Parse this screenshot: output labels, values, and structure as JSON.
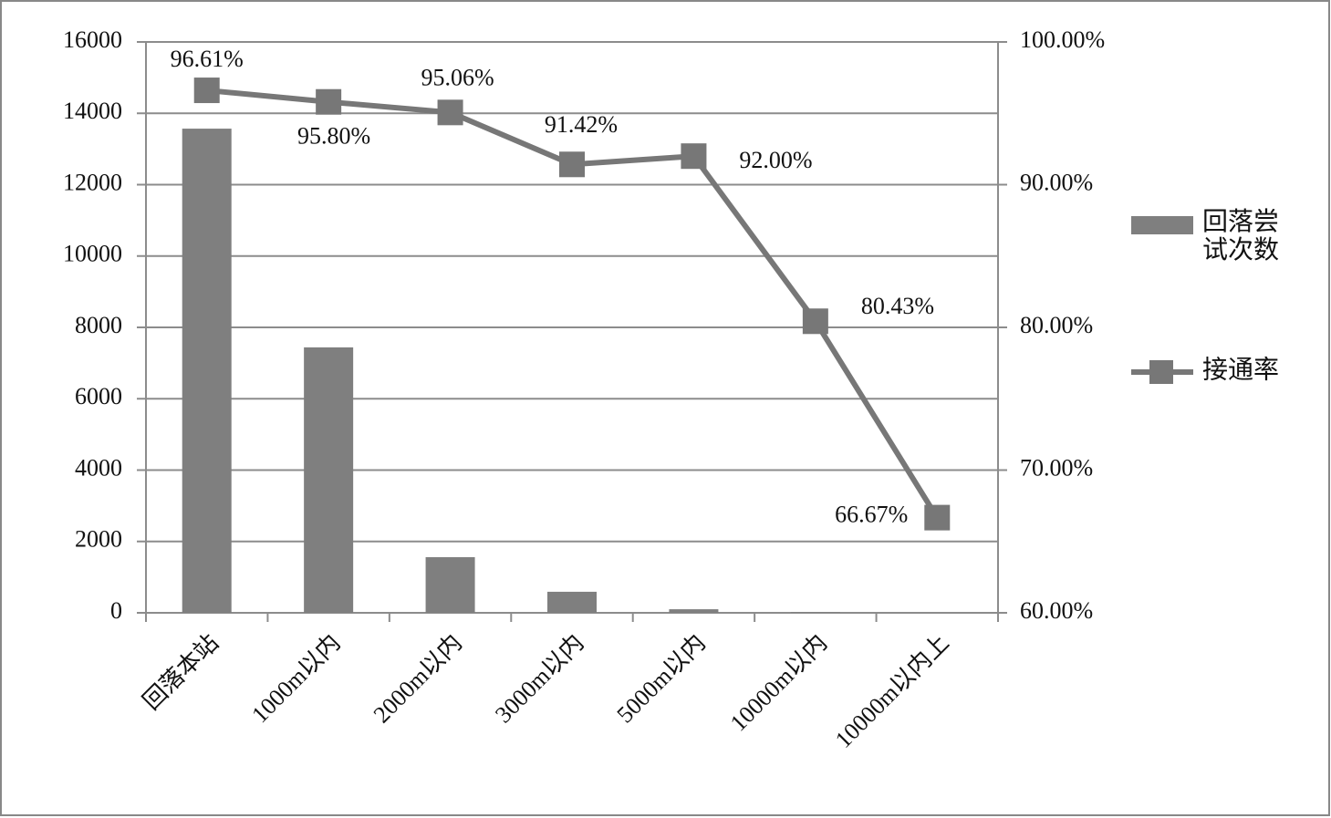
{
  "chart_data": {
    "type": "bar-line",
    "categories": [
      "回落本站",
      "1000m以内",
      "2000m以内",
      "3000m以内",
      "5000m以内",
      "10000m以内",
      "10000m以内上"
    ],
    "series": [
      {
        "name": "回落尝试次数",
        "type": "bar",
        "color": "#7f7f7f",
        "values": [
          13570,
          7440,
          1560,
          590,
          100,
          20,
          0
        ]
      },
      {
        "name": "接通率",
        "type": "line",
        "axis": "y2",
        "color": "#777777",
        "values": [
          96.61,
          95.8,
          95.06,
          91.42,
          92.0,
          80.43,
          66.67
        ],
        "value_labels": [
          "96.61%",
          "95.80%",
          "95.06%",
          "91.42%",
          "92.00%",
          "80.43%",
          "66.67%"
        ]
      }
    ],
    "ylim": [
      0,
      16000
    ],
    "yticks": [
      0,
      2000,
      4000,
      6000,
      8000,
      10000,
      12000,
      14000,
      16000
    ],
    "y2lim": [
      60,
      100
    ],
    "y2ticks": [
      {
        "value": 60,
        "label": "60.00%"
      },
      {
        "value": 70,
        "label": "70.00%"
      },
      {
        "value": 80,
        "label": "80.00%"
      },
      {
        "value": 90,
        "label": "90.00%"
      },
      {
        "value": 100,
        "label": "100.00%"
      }
    ],
    "grid": true,
    "legend": "right"
  }
}
